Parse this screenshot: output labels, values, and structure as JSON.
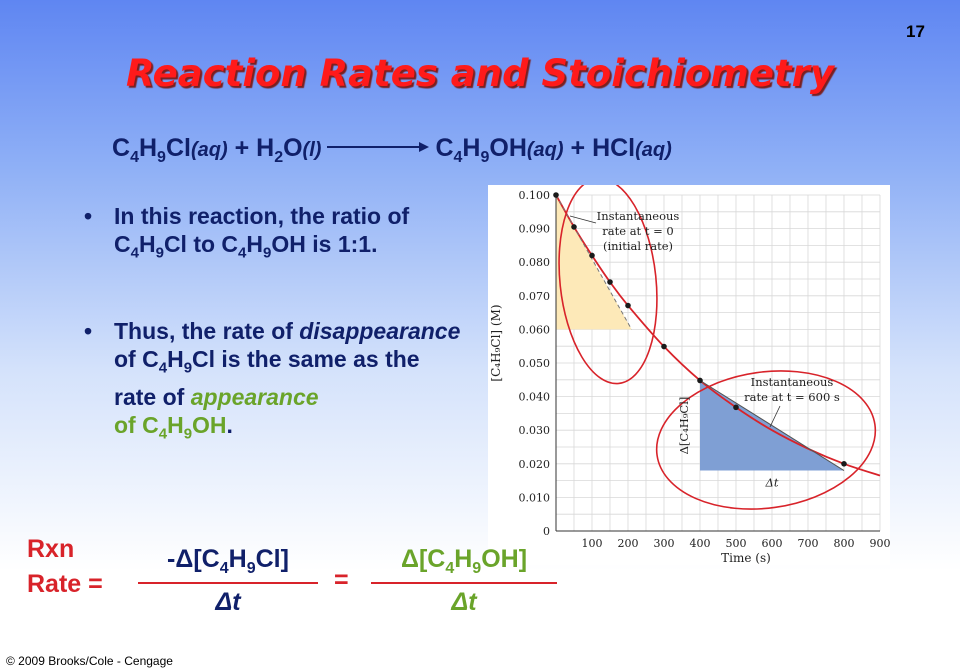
{
  "slide": {
    "number": "17",
    "title": "Reaction Rates and Stoichiometry",
    "copyright": "© 2009 Brooks/Cole - Cengage"
  },
  "equation": {
    "r1": "C",
    "r1s1": "4",
    "r1b": "H",
    "r1s2": "9",
    "r1c": "Cl",
    "r1p": "(aq)",
    "plus1": "+",
    "r2": "H",
    "r2s": "2",
    "r2b": "O",
    "r2p": "(l)",
    "p1": "C",
    "p1s1": "4",
    "p1b": "H",
    "p1s2": "9",
    "p1c": "OH",
    "p1p": "(aq)",
    "plus2": "+",
    "p2": "HCl",
    "p2p": "(aq)"
  },
  "bullets": {
    "b1": {
      "a": "In this reaction, the ratio of C",
      "s1": "4",
      "b": "H",
      "s2": "9",
      "c": "Cl to C",
      "s3": "4",
      "d": "H",
      "s4": "9",
      "e": "OH is 1:1."
    },
    "b2": {
      "a": "Thus, the rate of ",
      "em1": "disappearance",
      "b": " of C",
      "s1": "4",
      "c": "H",
      "s2": "9",
      "d": "Cl is the same as the rate of ",
      "em2": "appearance",
      "e": "of C",
      "s3": "4",
      "f": "H",
      "s4": "9",
      "g": "OH",
      "h": "."
    }
  },
  "rate_equation": {
    "label_line1": "Rxn",
    "label_line2": "Rate =",
    "left_num": {
      "a": "-Δ[C",
      "s1": "4",
      "b": "H",
      "s2": "9",
      "c": "Cl]"
    },
    "left_den": "Δt",
    "equals": "=",
    "right_num": {
      "a": "Δ[C",
      "s1": "4",
      "b": "H",
      "s2": "9",
      "c": "OH]"
    },
    "right_den": "Δt"
  },
  "chart_data": {
    "type": "scatter",
    "xlabel": "Time (s)",
    "ylabel": "[C₄H₉Cl] (M)",
    "xlim": [
      0,
      900
    ],
    "ylim": [
      0,
      0.1
    ],
    "x_ticks": [
      "100",
      "200",
      "300",
      "400",
      "500",
      "600",
      "700",
      "800",
      "900"
    ],
    "y_ticks": [
      "0",
      "0.010",
      "0.020",
      "0.030",
      "0.040",
      "0.050",
      "0.060",
      "0.070",
      "0.080",
      "0.090",
      "0.100"
    ],
    "grid": true,
    "points": [
      {
        "x": 0,
        "y": 0.1
      },
      {
        "x": 50,
        "y": 0.0905
      },
      {
        "x": 100,
        "y": 0.082
      },
      {
        "x": 150,
        "y": 0.0741
      },
      {
        "x": 200,
        "y": 0.0671
      },
      {
        "x": 300,
        "y": 0.0549
      },
      {
        "x": 400,
        "y": 0.0448
      },
      {
        "x": 500,
        "y": 0.0368
      },
      {
        "x": 800,
        "y": 0.02
      }
    ],
    "curve": [
      [
        0,
        0.1
      ],
      [
        50,
        0.0905
      ],
      [
        100,
        0.082
      ],
      [
        150,
        0.0741
      ],
      [
        200,
        0.0671
      ],
      [
        300,
        0.0549
      ],
      [
        400,
        0.0448
      ],
      [
        500,
        0.0368
      ],
      [
        600,
        0.03
      ],
      [
        700,
        0.0245
      ],
      [
        800,
        0.02
      ],
      [
        900,
        0.0165
      ]
    ],
    "tangents": [
      {
        "from": [
          0,
          0.1
        ],
        "to": [
          210,
          0.06
        ]
      },
      {
        "from": [
          400,
          0.0448
        ],
        "to": [
          800,
          0.018
        ]
      }
    ],
    "annotations": {
      "initial_line1": "Instantaneous",
      "initial_line2": "rate at t = 0",
      "initial_line3": "(initial rate)",
      "at600_line1": "Instantaneous",
      "at600_line2": "rate at t = 600 s",
      "delta_conc": "Δ[C₄H₉Cl]",
      "delta_t": "Δt"
    },
    "colors": {
      "curve": "#d8232a",
      "points": "#1a1a1a",
      "triangle1": "#fde9b8",
      "triangle2": "#7f9fd4",
      "ellipse": "#d8232a"
    }
  }
}
